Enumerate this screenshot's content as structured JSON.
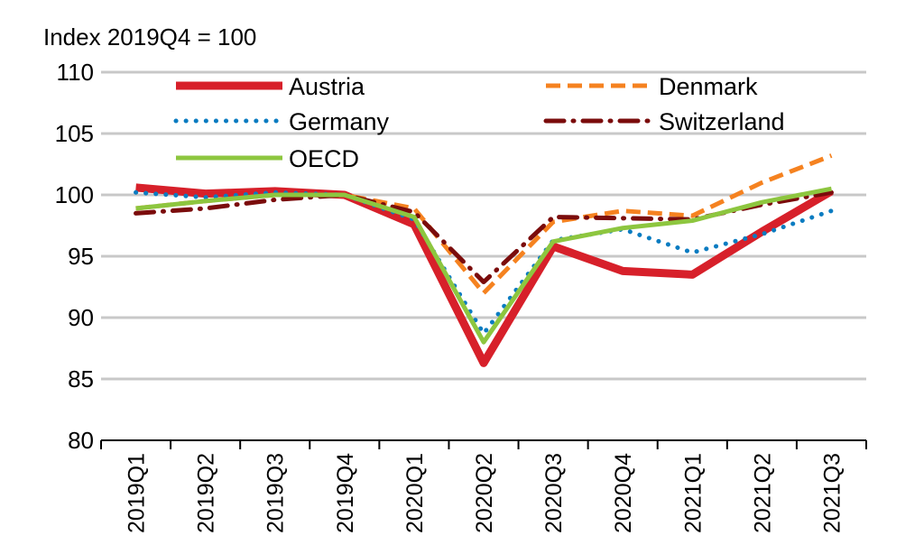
{
  "chart_data": {
    "type": "line",
    "title": "",
    "ylabel": "Index 2019Q4 = 100",
    "xlabel": "",
    "ylim": [
      80,
      110
    ],
    "yticks": [
      80,
      85,
      90,
      95,
      100,
      105,
      110
    ],
    "grid": true,
    "legend_placement": "top",
    "categories": [
      "2019Q1",
      "2019Q2",
      "2019Q3",
      "2019Q4",
      "2020Q1",
      "2020Q2",
      "2020Q3",
      "2020Q4",
      "2021Q1",
      "2021Q2",
      "2021Q3"
    ],
    "series": [
      {
        "name": "Austria",
        "color": "#d7202a",
        "style": "solid-thick",
        "values": [
          100.6,
          100.1,
          100.3,
          100.0,
          97.6,
          86.3,
          95.8,
          93.8,
          93.5,
          97.0,
          100.3
        ]
      },
      {
        "name": "Denmark",
        "color": "#f58220",
        "style": "dashed",
        "values": [
          98.9,
          99.5,
          100.0,
          100.0,
          98.9,
          92.0,
          97.8,
          98.7,
          98.3,
          101.0,
          103.2
        ]
      },
      {
        "name": "Germany",
        "color": "#0b7cc1",
        "style": "dotted",
        "values": [
          100.2,
          99.8,
          100.2,
          100.0,
          98.0,
          88.7,
          96.3,
          97.2,
          95.3,
          96.8,
          98.7
        ]
      },
      {
        "name": "Switzerland",
        "color": "#7b0c0c",
        "style": "dashdot",
        "values": [
          98.5,
          98.9,
          99.6,
          100.0,
          98.6,
          92.9,
          98.2,
          98.1,
          98.0,
          99.2,
          100.2
        ]
      },
      {
        "name": "OECD",
        "color": "#8dc63f",
        "style": "solid",
        "values": [
          98.9,
          99.5,
          100.0,
          100.0,
          98.2,
          88.0,
          96.2,
          97.3,
          97.9,
          99.4,
          100.5
        ]
      }
    ]
  }
}
